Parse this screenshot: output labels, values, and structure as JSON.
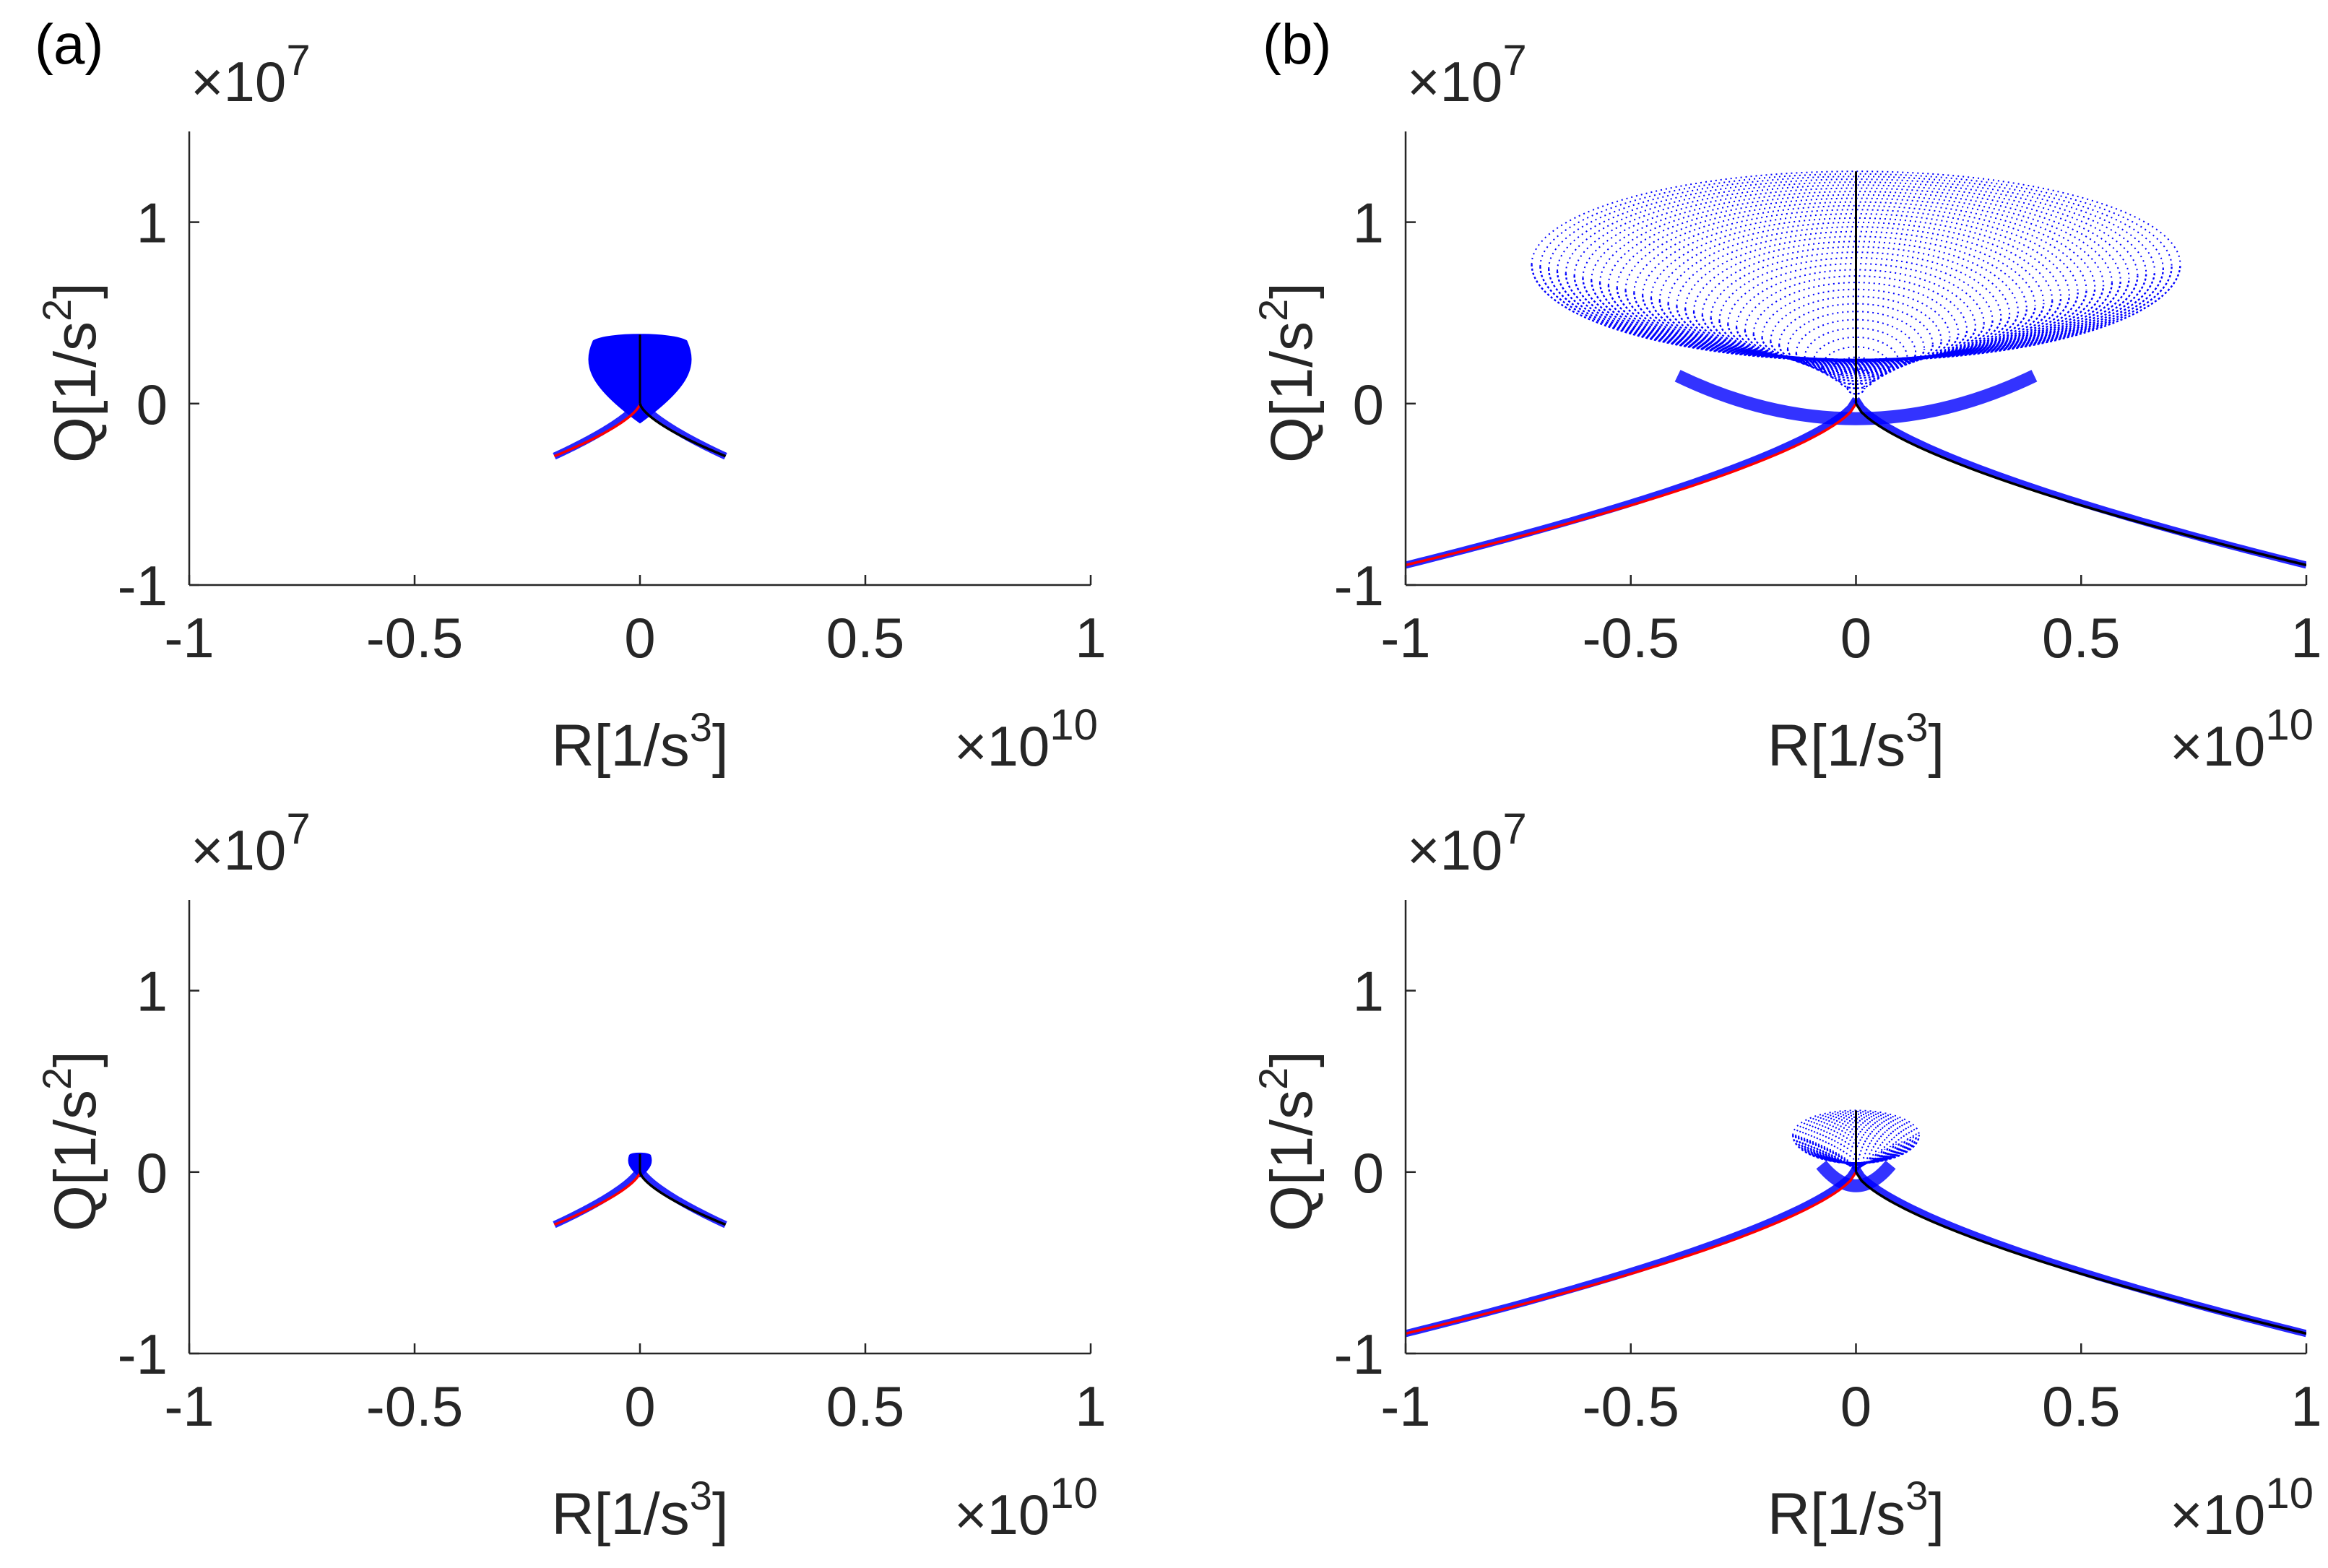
{
  "figure": {
    "panel_labels": [
      "(a)",
      "(b)"
    ],
    "colors": {
      "envelope_fill": "#0000ff",
      "left_branch": "#ff0000",
      "right_branch": "#000000",
      "axis": "#262626"
    }
  },
  "chart_data": [
    {
      "type": "scatter",
      "panel": "(a)",
      "xlabel": "R[1/s",
      "xlabel_sup": "3",
      "xlabel_close": "]",
      "ylabel": "Q[1/s",
      "ylabel_sup": "2",
      "ylabel_close": "]",
      "x_multiplier": "×10",
      "x_multiplier_exp": "10",
      "y_multiplier": "×10",
      "y_multiplier_exp": "7",
      "xlim": [
        -1,
        1
      ],
      "ylim": [
        -1,
        1.5
      ],
      "xticks": [
        -1,
        -0.5,
        0,
        0.5,
        1
      ],
      "xtick_labels": [
        "-1",
        "-0.5",
        "0",
        "0.5",
        "1"
      ],
      "yticks": [
        -1,
        0,
        1
      ],
      "ytick_labels": [
        "-1",
        "0",
        "1"
      ],
      "grid": false,
      "envelope": {
        "half_width": 0.12,
        "top": 0.38,
        "bottom": -0.1,
        "style": "filled"
      },
      "series": [
        {
          "color": "#ff0000",
          "x_range": [
            -0.19,
            0
          ],
          "q_at_end": -0.29
        },
        {
          "color": "#000000",
          "x_range": [
            0,
            0.19
          ],
          "q_at_end": -0.29
        },
        {
          "color": "#000000",
          "vertical_line": {
            "x": 0,
            "y_range": [
              0,
              0.38
            ]
          }
        }
      ]
    },
    {
      "type": "scatter",
      "panel": "(b)",
      "xlabel": "R[1/s",
      "xlabel_sup": "3",
      "xlabel_close": "]",
      "ylabel": "Q[1/s",
      "ylabel_sup": "2",
      "ylabel_close": "]",
      "x_multiplier": "×10",
      "x_multiplier_exp": "10",
      "y_multiplier": "×10",
      "y_multiplier_exp": "7",
      "xlim": [
        -1,
        1
      ],
      "ylim": [
        -1,
        1.5
      ],
      "xticks": [
        -1,
        -0.5,
        0,
        0.5,
        1
      ],
      "xtick_labels": [
        "-1",
        "-0.5",
        "0",
        "0.5",
        "1"
      ],
      "yticks": [
        -1,
        0,
        1
      ],
      "ytick_labels": [
        "-1",
        "0",
        "1"
      ],
      "grid": false,
      "envelope": {
        "half_width": 0.72,
        "top": 1.28,
        "bottom": -0.2,
        "style": "rings",
        "ring_count": 38
      },
      "series": [
        {
          "color": "#ff0000",
          "x_range": [
            -1,
            0
          ],
          "q_at_end": -0.89
        },
        {
          "color": "#000000",
          "x_range": [
            0,
            1
          ],
          "q_at_end": -0.89
        },
        {
          "color": "#000000",
          "vertical_line": {
            "x": 0,
            "y_range": [
              0,
              1.28
            ]
          }
        }
      ]
    },
    {
      "type": "scatter",
      "panel": "(a)",
      "xlabel": "R[1/s",
      "xlabel_sup": "3",
      "xlabel_close": "]",
      "ylabel": "Q[1/s",
      "ylabel_sup": "2",
      "ylabel_close": "]",
      "x_multiplier": "×10",
      "x_multiplier_exp": "10",
      "y_multiplier": "×10",
      "y_multiplier_exp": "7",
      "xlim": [
        -1,
        1
      ],
      "ylim": [
        -1,
        1.5
      ],
      "xticks": [
        -1,
        -0.5,
        0,
        0.5,
        1
      ],
      "xtick_labels": [
        "-1",
        "-0.5",
        "0",
        "0.5",
        "1"
      ],
      "yticks": [
        -1,
        0,
        1
      ],
      "ytick_labels": [
        "-1",
        "0",
        "1"
      ],
      "grid": false,
      "envelope": {
        "half_width": 0.025,
        "top": 0.1,
        "bottom": -0.02,
        "style": "filled"
      },
      "series": [
        {
          "color": "#ff0000",
          "x_range": [
            -0.19,
            0
          ],
          "q_at_end": -0.29
        },
        {
          "color": "#000000",
          "x_range": [
            0,
            0.19
          ],
          "q_at_end": -0.29
        },
        {
          "color": "#000000",
          "vertical_line": {
            "x": 0,
            "y_range": [
              0,
              0.1
            ]
          }
        }
      ]
    },
    {
      "type": "scatter",
      "panel": "(b)",
      "xlabel": "R[1/s",
      "xlabel_sup": "3",
      "xlabel_close": "]",
      "ylabel": "Q[1/s",
      "ylabel_sup": "2",
      "ylabel_close": "]",
      "x_multiplier": "×10",
      "x_multiplier_exp": "10",
      "y_multiplier": "×10",
      "y_multiplier_exp": "7",
      "xlim": [
        -1,
        1
      ],
      "ylim": [
        -1,
        1.5
      ],
      "xticks": [
        -1,
        -0.5,
        0,
        0.5,
        1
      ],
      "xtick_labels": [
        "-1",
        "-0.5",
        "0",
        "0.5",
        "1"
      ],
      "yticks": [
        -1,
        0,
        1
      ],
      "ytick_labels": [
        "-1",
        "0",
        "1"
      ],
      "grid": false,
      "envelope": {
        "half_width": 0.14,
        "top": 0.34,
        "bottom": -0.12,
        "style": "rings",
        "ring_count": 22
      },
      "series": [
        {
          "color": "#ff0000",
          "x_range": [
            -1,
            0
          ],
          "q_at_end": -0.89
        },
        {
          "color": "#000000",
          "x_range": [
            0,
            1
          ],
          "q_at_end": -0.89
        },
        {
          "color": "#000000",
          "vertical_line": {
            "x": 0,
            "y_range": [
              0,
              0.34
            ]
          }
        }
      ]
    }
  ]
}
